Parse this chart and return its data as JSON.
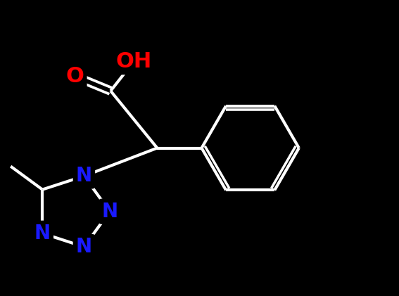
{
  "bg_color": "#000000",
  "bond_color": "#ffffff",
  "bond_width": 3.0,
  "atom_colors": {
    "N": "#1a1aff",
    "O": "#ff0000",
    "H": "#ffffff"
  },
  "font_size_N": 20,
  "font_size_O": 22,
  "figsize": [
    5.67,
    4.21
  ],
  "dpi": 100,
  "xlim": [
    -1.5,
    7.5
  ],
  "ylim": [
    -3.5,
    3.5
  ]
}
